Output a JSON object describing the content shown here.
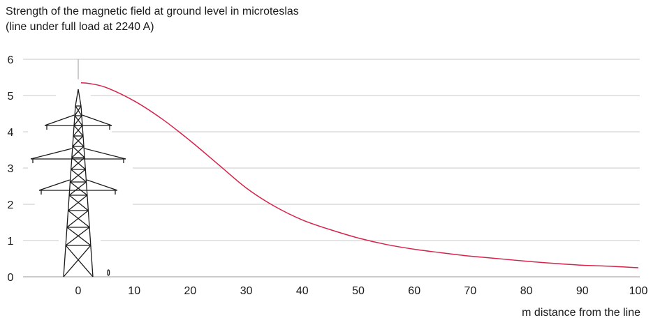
{
  "chart_data": {
    "type": "line",
    "title": "Strength of the magnetic field at ground level in microteslas",
    "subtitle": "(line under full load at 2240 A)",
    "xlabel": "m distance from the line",
    "ylabel": "",
    "xlim": [
      -10,
      100
    ],
    "ylim": [
      0,
      6
    ],
    "xticks": [
      0,
      10,
      20,
      30,
      40,
      50,
      60,
      70,
      80,
      90,
      100
    ],
    "yticks": [
      0,
      1,
      2,
      3,
      4,
      5,
      6
    ],
    "grid": true,
    "line_color": "#d6234a",
    "series": [
      {
        "x": [
          0.5,
          2,
          5,
          10,
          15,
          20,
          25,
          30,
          35,
          40,
          45,
          50,
          55,
          60,
          65,
          70,
          75,
          80,
          85,
          90,
          95,
          100
        ],
        "y": [
          5.35,
          5.33,
          5.22,
          4.85,
          4.35,
          3.75,
          3.1,
          2.45,
          1.95,
          1.57,
          1.3,
          1.07,
          0.89,
          0.76,
          0.66,
          0.57,
          0.5,
          0.43,
          0.37,
          0.32,
          0.29,
          0.25
        ]
      }
    ]
  }
}
